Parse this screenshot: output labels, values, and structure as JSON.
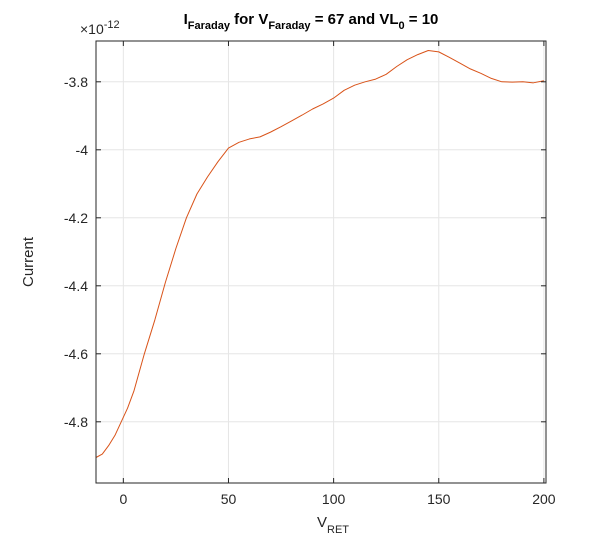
{
  "chart_data": {
    "type": "line",
    "title": {
      "parts": [
        {
          "text": "I",
          "sub": false
        },
        {
          "text": "Faraday",
          "sub": true
        },
        {
          "text": " for V",
          "sub": false
        },
        {
          "text": "Faraday",
          "sub": true
        },
        {
          "text": " = 67 and VL",
          "sub": false
        },
        {
          "text": "0",
          "sub": true
        },
        {
          "text": " = 10",
          "sub": false
        }
      ]
    },
    "xlabel": {
      "main": "V",
      "sub": "RET"
    },
    "ylabel": "Current",
    "y_exponent_label": {
      "base": "×10",
      "exp": "-12"
    },
    "xlim": [
      -13,
      201
    ],
    "ylim": [
      -4.98,
      -3.68
    ],
    "y_scale_factor": 1e-12,
    "xticks": [
      0,
      50,
      100,
      150,
      200
    ],
    "xtick_labels": [
      "0",
      "50",
      "100",
      "150",
      "200"
    ],
    "yticks": [
      -4.8,
      -4.6,
      -4.4,
      -4.2,
      -4.0,
      -3.8
    ],
    "ytick_labels": [
      "-4.8",
      "-4.6",
      "-4.4",
      "-4.2",
      "-4",
      "-3.8"
    ],
    "grid": true,
    "series": [
      {
        "color": "#d95319",
        "x": [
          -13,
          -10,
          -7,
          -4,
          -1,
          2,
          5,
          10,
          15,
          20,
          25,
          30,
          35,
          40,
          45,
          50,
          55,
          60,
          65,
          70,
          75,
          80,
          85,
          90,
          95,
          100,
          105,
          110,
          115,
          120,
          125,
          130,
          135,
          140,
          145,
          150,
          155,
          160,
          165,
          170,
          175,
          180,
          185,
          190,
          195,
          200
        ],
        "y": [
          -4.905,
          -4.895,
          -4.87,
          -4.84,
          -4.8,
          -4.76,
          -4.71,
          -4.6,
          -4.5,
          -4.39,
          -4.29,
          -4.2,
          -4.13,
          -4.08,
          -4.035,
          -3.995,
          -3.978,
          -3.968,
          -3.962,
          -3.948,
          -3.932,
          -3.915,
          -3.898,
          -3.88,
          -3.865,
          -3.848,
          -3.825,
          -3.81,
          -3.8,
          -3.792,
          -3.778,
          -3.755,
          -3.735,
          -3.72,
          -3.708,
          -3.712,
          -3.728,
          -3.745,
          -3.762,
          -3.775,
          -3.79,
          -3.8,
          -3.801,
          -3.8,
          -3.803,
          -3.797
        ]
      }
    ]
  }
}
